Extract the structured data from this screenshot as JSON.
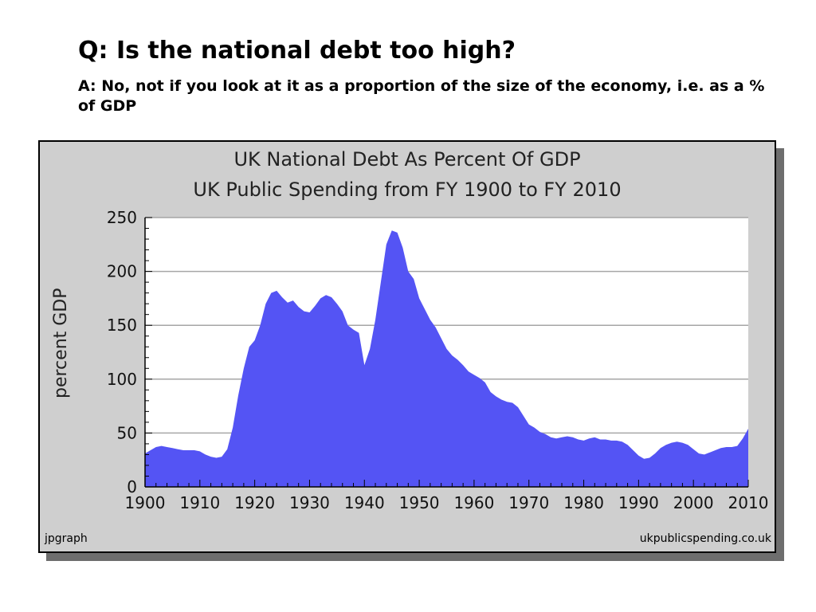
{
  "slide": {
    "question": "Q: Is the national debt too high?",
    "answer": "A: No, not if you look at it as a proportion of the size of the economy, i.e. as a % of GDP"
  },
  "footer": {
    "left": "jpgraph",
    "right": "ukpublicspending.co.uk"
  },
  "colors": {
    "fill": "#5454f4",
    "plot_background": "#ffffff",
    "frame_background": "#cfcfcf",
    "grid": "#a6a6a6"
  },
  "chart_data": {
    "type": "area",
    "title": "UK National Debt As Percent Of GDP",
    "subtitle": "UK Public Spending from FY 1900 to FY 2010",
    "xlabel": "",
    "ylabel": "percent GDP",
    "xlim": [
      1900,
      2010
    ],
    "ylim": [
      0,
      250
    ],
    "x_ticks": [
      1900,
      1910,
      1920,
      1930,
      1940,
      1950,
      1960,
      1970,
      1980,
      1990,
      2000,
      2010
    ],
    "y_ticks": [
      0,
      50,
      100,
      150,
      200,
      250
    ],
    "grid": "horizontal",
    "series": [
      {
        "x": [
          1900,
          1901,
          1902,
          1903,
          1904,
          1905,
          1906,
          1907,
          1908,
          1909,
          1910,
          1911,
          1912,
          1913,
          1914,
          1915,
          1916,
          1917,
          1918,
          1919,
          1920,
          1921,
          1922,
          1923,
          1924,
          1925,
          1926,
          1927,
          1928,
          1929,
          1930,
          1931,
          1932,
          1933,
          1934,
          1935,
          1936,
          1937,
          1938,
          1939,
          1940,
          1941,
          1942,
          1943,
          1944,
          1945,
          1946,
          1947,
          1948,
          1949,
          1950,
          1951,
          1952,
          1953,
          1954,
          1955,
          1956,
          1957,
          1958,
          1959,
          1960,
          1961,
          1962,
          1963,
          1964,
          1965,
          1966,
          1967,
          1968,
          1969,
          1970,
          1971,
          1972,
          1973,
          1974,
          1975,
          1976,
          1977,
          1978,
          1979,
          1980,
          1981,
          1982,
          1983,
          1984,
          1985,
          1986,
          1987,
          1988,
          1989,
          1990,
          1991,
          1992,
          1993,
          1994,
          1995,
          1996,
          1997,
          1998,
          1999,
          2000,
          2001,
          2002,
          2003,
          2004,
          2005,
          2006,
          2007,
          2008,
          2009,
          2010
        ],
        "values": [
          31,
          34,
          37,
          38,
          37,
          36,
          35,
          34,
          34,
          34,
          33,
          30,
          28,
          27,
          28,
          35,
          55,
          85,
          110,
          130,
          136,
          150,
          170,
          180,
          182,
          176,
          171,
          173,
          167,
          163,
          162,
          168,
          175,
          178,
          176,
          170,
          163,
          150,
          146,
          143,
          113,
          128,
          155,
          190,
          225,
          238,
          236,
          222,
          200,
          193,
          175,
          165,
          155,
          148,
          138,
          128,
          122,
          118,
          113,
          107,
          104,
          101,
          97,
          88,
          84,
          81,
          79,
          78,
          74,
          66,
          58,
          55,
          51,
          49,
          46,
          45,
          46,
          47,
          46,
          44,
          43,
          45,
          46,
          44,
          44,
          43,
          43,
          42,
          39,
          34,
          29,
          26,
          27,
          31,
          36,
          39,
          41,
          42,
          41,
          39,
          35,
          31,
          30,
          32,
          34,
          36,
          37,
          37,
          38,
          45,
          54
        ]
      }
    ]
  }
}
